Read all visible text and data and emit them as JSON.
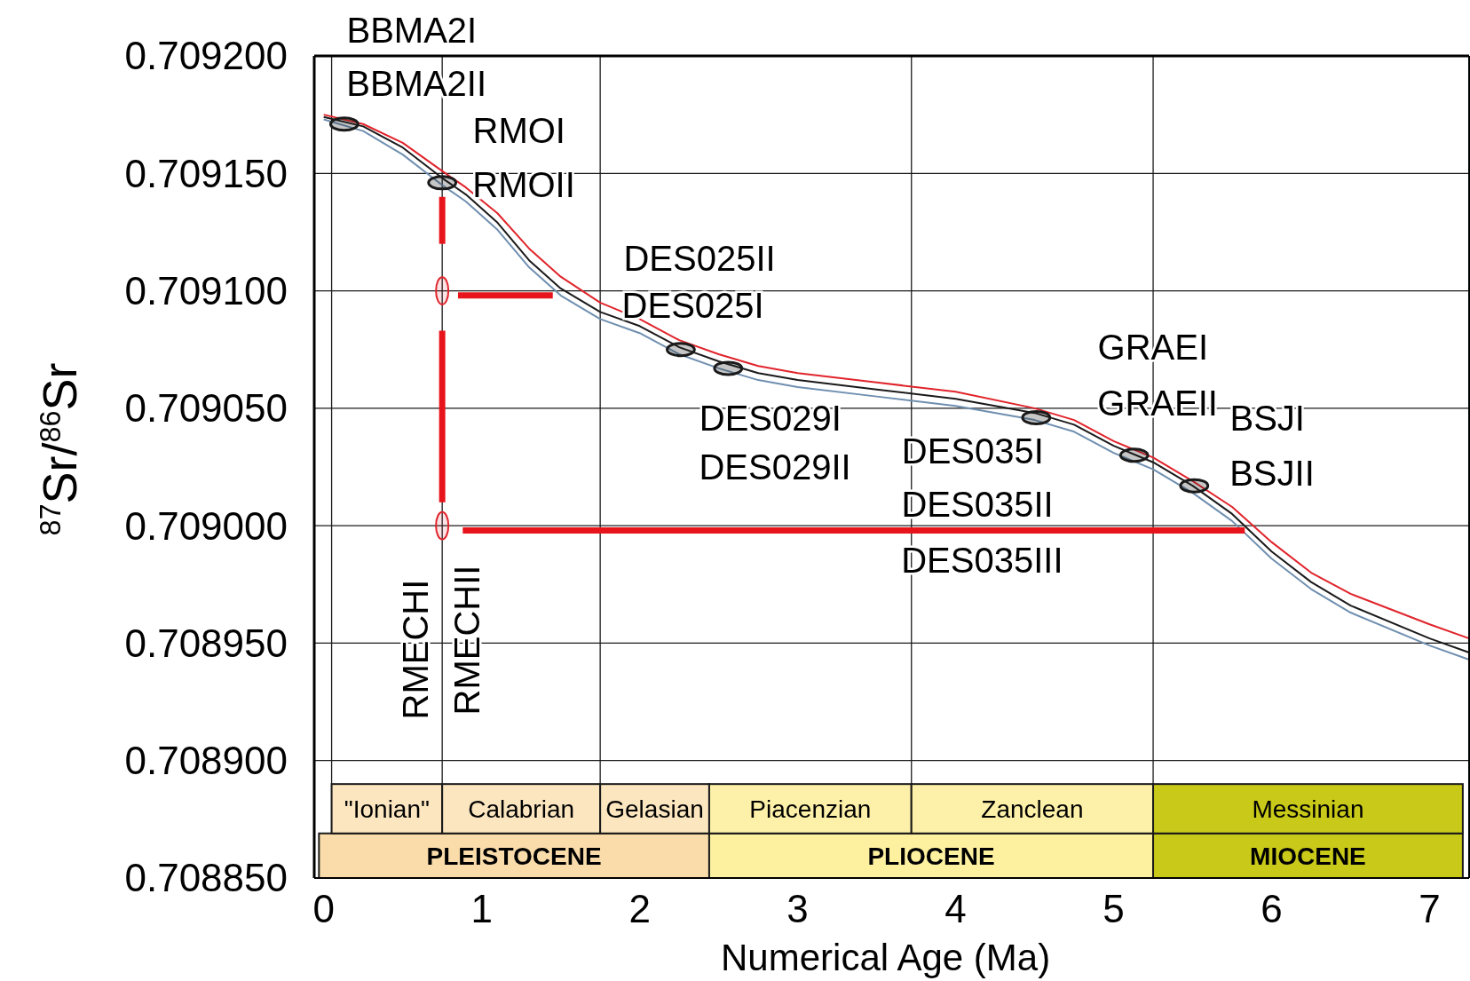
{
  "chart_data": {
    "type": "line",
    "xlabel": "Numerical Age (Ma)",
    "ylabel": "$^{87}$Sr/$^{86}$Sr",
    "x": [
      0,
      0.25,
      0.5,
      0.75,
      0.9,
      1.1,
      1.3,
      1.5,
      1.75,
      2,
      2.25,
      2.5,
      2.75,
      3,
      3.5,
      4,
      4.5,
      4.75,
      5,
      5.25,
      5.5,
      5.75,
      6,
      6.25,
      6.5,
      7,
      7.25
    ],
    "series": [
      {
        "color": "#e0242b",
        "values": [
          0.709175,
          0.709171,
          0.709163,
          0.709151,
          0.709144,
          0.709133,
          0.709118,
          0.709106,
          0.709095,
          0.709088,
          0.709079,
          0.709073,
          0.709068,
          0.709065,
          0.709061,
          0.709057,
          0.70905,
          0.709045,
          0.709036,
          0.709029,
          0.709019,
          0.709008,
          0.708993,
          0.70898,
          0.708971,
          0.708958,
          0.708952
        ]
      },
      {
        "color": "#6f8fb0",
        "values": [
          0.709173,
          0.709168,
          0.709158,
          0.709145,
          0.709138,
          0.709126,
          0.70911,
          0.709098,
          0.709088,
          0.709082,
          0.709073,
          0.709067,
          0.709062,
          0.709059,
          0.709055,
          0.709051,
          0.709045,
          0.70904,
          0.709031,
          0.709024,
          0.709014,
          0.709002,
          0.708986,
          0.708973,
          0.708963,
          0.708949,
          0.708943
        ]
      },
      {
        "color": "#1a1a1a",
        "values": [
          0.709174,
          0.70917,
          0.709161,
          0.709148,
          0.709141,
          0.709129,
          0.709113,
          0.709101,
          0.709091,
          0.709085,
          0.709076,
          0.70907,
          0.709065,
          0.709062,
          0.709058,
          0.709054,
          0.709048,
          0.709043,
          0.709034,
          0.709027,
          0.709017,
          0.709005,
          0.708989,
          0.708976,
          0.708966,
          0.708952,
          0.708946
        ]
      },
      {
        "type": "line",
        "color": "#e8141c",
        "x": [
          0.75,
          0.75
        ],
        "values": [
          0.70914,
          0.70912
        ]
      },
      {
        "type": "line",
        "color": "#e8141c",
        "x": [
          0.85,
          1.45
        ],
        "values": [
          0.709098,
          0.709098
        ]
      },
      {
        "type": "line",
        "color": "#e8141c",
        "x": [
          0.75,
          0.75
        ],
        "values": [
          0.709083,
          0.70901
        ]
      },
      {
        "type": "line",
        "color": "#e8141c",
        "x": [
          0.88,
          5.83
        ],
        "values": [
          0.708998,
          0.708998
        ]
      },
      {
        "type": "scatter",
        "color": "#1a1a1a",
        "x": [
          0.13,
          0.75,
          2.26,
          2.56,
          4.51,
          5.13,
          5.51
        ],
        "values": [
          0.709171,
          0.709146,
          0.709075,
          0.709067,
          0.709046,
          0.70903,
          0.709017
        ]
      },
      {
        "type": "scatter",
        "color": "#e0242b",
        "x": [
          0.75,
          0.75
        ],
        "values": [
          0.7091,
          0.709
        ]
      }
    ],
    "xlim": [
      -0.06,
      7.25
    ],
    "xticks": [
      0,
      1,
      2,
      3,
      4,
      5,
      6,
      7
    ],
    "ylim": [
      0.70885,
      0.7092
    ],
    "yticks": [
      {
        "value": 0.70885,
        "label": "0.708850"
      },
      {
        "value": 0.7089,
        "label": "0.708900"
      },
      {
        "value": 0.70895,
        "label": "0.708950"
      },
      {
        "value": 0.709,
        "label": "0.709000"
      },
      {
        "value": 0.70905,
        "label": "0.709050"
      },
      {
        "value": 0.7091,
        "label": "0.709100"
      },
      {
        "value": 0.70915,
        "label": "0.709150"
      },
      {
        "value": 0.7092,
        "label": "0.709200"
      }
    ],
    "grid": "y",
    "line_style": "solid",
    "ref_lines": [
      {
        "axis": "x",
        "value": 0.05,
        "color": "#1a1a1a"
      },
      {
        "axis": "x",
        "value": 0.75,
        "color": "#1a1a1a"
      },
      {
        "axis": "x",
        "value": 1.75,
        "color": "#1a1a1a"
      },
      {
        "axis": "x",
        "value": 3.72,
        "color": "#1a1a1a"
      },
      {
        "axis": "x",
        "value": 5.25,
        "color": "#1a1a1a"
      }
    ],
    "bands": [
      {
        "axis": "x",
        "from": -0.03,
        "to": 2.44,
        "label": "PLEISTOCENE",
        "color": "#f9dcaa"
      },
      {
        "axis": "x",
        "from": 2.44,
        "to": 5.25,
        "label": "PLIOCENE",
        "color": "#fdf1a0"
      },
      {
        "axis": "x",
        "from": 5.25,
        "to": 7.21,
        "label": "MIOCENE",
        "color": "#c9c919"
      },
      {
        "axis": "x",
        "from": 0.05,
        "to": 0.75,
        "label": "\"Ionian\"",
        "color": "#fbe6c0"
      },
      {
        "axis": "x",
        "from": 0.75,
        "to": 1.75,
        "label": "Calabrian",
        "color": "#fbe6c0"
      },
      {
        "axis": "x",
        "from": 1.75,
        "to": 2.44,
        "label": "Gelasian",
        "color": "#fbe6c0"
      },
      {
        "axis": "x",
        "from": 2.44,
        "to": 3.72,
        "label": "Piacenzian",
        "color": "#fdf0a8"
      },
      {
        "axis": "x",
        "from": 3.72,
        "to": 5.25,
        "label": "Zanclean",
        "color": "#fdf0a8"
      },
      {
        "axis": "x",
        "from": 5.25,
        "to": 7.21,
        "label": "Messinian",
        "color": "#c9c919"
      }
    ],
    "annotations": [
      {
        "text": "BBMA2I",
        "x": 0.13,
        "y": 0.709171
      },
      {
        "text": "BBMA2II",
        "x": 0.13,
        "y": 0.709171
      },
      {
        "text": "RMOI",
        "x": 0.75,
        "y": 0.709146
      },
      {
        "text": "RMOII",
        "x": 0.75,
        "y": 0.709146
      },
      {
        "text": "DES025II",
        "x": 2.26,
        "y": 0.709075
      },
      {
        "text": "DES025I",
        "x": 2.26,
        "y": 0.709075
      },
      {
        "text": "DES029I",
        "x": 2.56,
        "y": 0.709067
      },
      {
        "text": "DES029II",
        "x": 2.56,
        "y": 0.709067
      },
      "DES035I",
      "DES035II",
      "DES035III",
      {
        "text": "GRAEI",
        "x": 5.13,
        "y": 0.70903
      },
      {
        "text": "GRAEII",
        "x": 5.13,
        "y": 0.70903
      },
      {
        "text": "BSJI",
        "x": 5.51,
        "y": 0.709017
      },
      {
        "text": "BSJII",
        "x": 5.51,
        "y": 0.709017
      },
      {
        "text": "RMECHI",
        "x": 0.75,
        "y": 0.709
      },
      {
        "text": "RMECHII",
        "x": 0.75,
        "y": 0.709
      }
    ]
  }
}
